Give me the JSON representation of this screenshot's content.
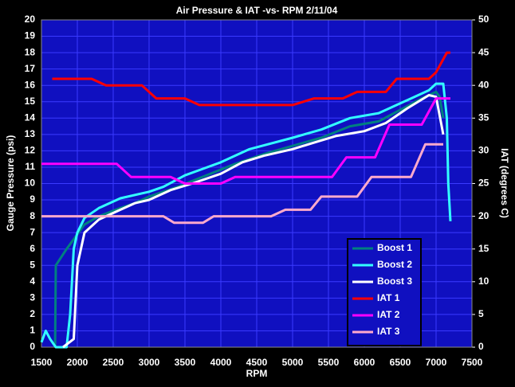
{
  "chart_data": {
    "type": "line",
    "title": "Air Pressure & IAT -vs- RPM 2/11/04",
    "x_label": "RPM",
    "y_label": "Gauge Pressure (psi)",
    "y2_label": "IAT (degrees C)",
    "xlim": [
      1500,
      7500
    ],
    "xticks": [
      1500,
      2000,
      2500,
      3000,
      3500,
      4000,
      4500,
      5000,
      5500,
      6000,
      6500,
      7000,
      7500
    ],
    "ylim": [
      0,
      20
    ],
    "yticks": [
      0,
      1,
      2,
      3,
      4,
      5,
      6,
      7,
      8,
      9,
      10,
      11,
      12,
      13,
      14,
      15,
      16,
      17,
      18,
      19,
      20
    ],
    "y2lim": [
      0,
      50
    ],
    "y2ticks": [
      0,
      5,
      10,
      15,
      20,
      25,
      30,
      35,
      40,
      45,
      50
    ],
    "grid": true,
    "legend": "lower right",
    "series": [
      {
        "name": "Boost 1",
        "color": "#008080",
        "x": [
          1690,
          1700,
          1850,
          1950,
          2100,
          2300,
          2600,
          2800,
          3000,
          3400,
          3800,
          4200,
          4600,
          5000,
          5400,
          5800,
          6200,
          6500,
          6800,
          7000,
          7050,
          7100
        ],
        "values": [
          0,
          5,
          6,
          6.6,
          7.5,
          8,
          8.5,
          8.8,
          9.2,
          9.8,
          10.5,
          11.2,
          11.8,
          12.3,
          12.8,
          13.5,
          13.8,
          14.5,
          15.2,
          15.6,
          15.3,
          14
        ]
      },
      {
        "name": "Boost 2",
        "color": "#33ffff",
        "x": [
          1500,
          1560,
          1620,
          1700,
          1850,
          1900,
          1950,
          2000,
          2100,
          2300,
          2600,
          3000,
          3200,
          3500,
          4000,
          4400,
          5000,
          5400,
          5800,
          6200,
          6600,
          6900,
          7000,
          7100,
          7150,
          7170,
          7200
        ],
        "values": [
          0.3,
          1,
          0.5,
          0,
          0,
          2,
          6,
          7,
          7.9,
          8.5,
          9.1,
          9.5,
          9.8,
          10.5,
          11.3,
          12.1,
          12.8,
          13.3,
          14,
          14.3,
          15.1,
          15.7,
          16.1,
          16.1,
          14,
          10,
          7.7
        ]
      },
      {
        "name": "Boost 3",
        "color": "#ffffff",
        "x": [
          1800,
          1950,
          2000,
          2100,
          2300,
          2600,
          2800,
          3000,
          3300,
          3600,
          4000,
          4300,
          4600,
          5000,
          5300,
          5600,
          6000,
          6300,
          6600,
          6900,
          7000,
          7100
        ],
        "values": [
          0,
          0.5,
          5,
          7,
          7.8,
          8.4,
          8.8,
          9,
          9.6,
          10,
          10.6,
          11.3,
          11.7,
          12.1,
          12.5,
          12.9,
          13.2,
          13.7,
          14.6,
          15.4,
          15.3,
          13
        ]
      },
      {
        "name": "IAT 1",
        "color": "#ff0000",
        "axis": "y2",
        "x": [
          1650,
          2200,
          2400,
          2900,
          3100,
          3500,
          3700,
          5000,
          5300,
          5700,
          5900,
          6300,
          6450,
          6900,
          7000,
          7150,
          7200
        ],
        "values": [
          41,
          41,
          40,
          40,
          38,
          38,
          37,
          37,
          38,
          38,
          39,
          39,
          41,
          41,
          42,
          45,
          45
        ]
      },
      {
        "name": "IAT 2",
        "color": "#ff00ff",
        "axis": "y2",
        "x": [
          1500,
          2550,
          2750,
          3300,
          3500,
          4000,
          4200,
          5550,
          5750,
          6150,
          6350,
          6800,
          7000,
          7200
        ],
        "values": [
          28,
          28,
          26,
          26,
          25,
          25,
          26,
          26,
          29,
          29,
          34,
          34,
          38,
          38
        ]
      },
      {
        "name": "IAT 3",
        "color": "#ffaacc",
        "axis": "y2",
        "x": [
          1500,
          3200,
          3350,
          3750,
          3900,
          4700,
          4900,
          5250,
          5400,
          5900,
          6100,
          6650,
          6850,
          7100
        ],
        "values": [
          20,
          20,
          19,
          19,
          20,
          20,
          21,
          21,
          23,
          23,
          26,
          26,
          31,
          31
        ]
      }
    ]
  }
}
